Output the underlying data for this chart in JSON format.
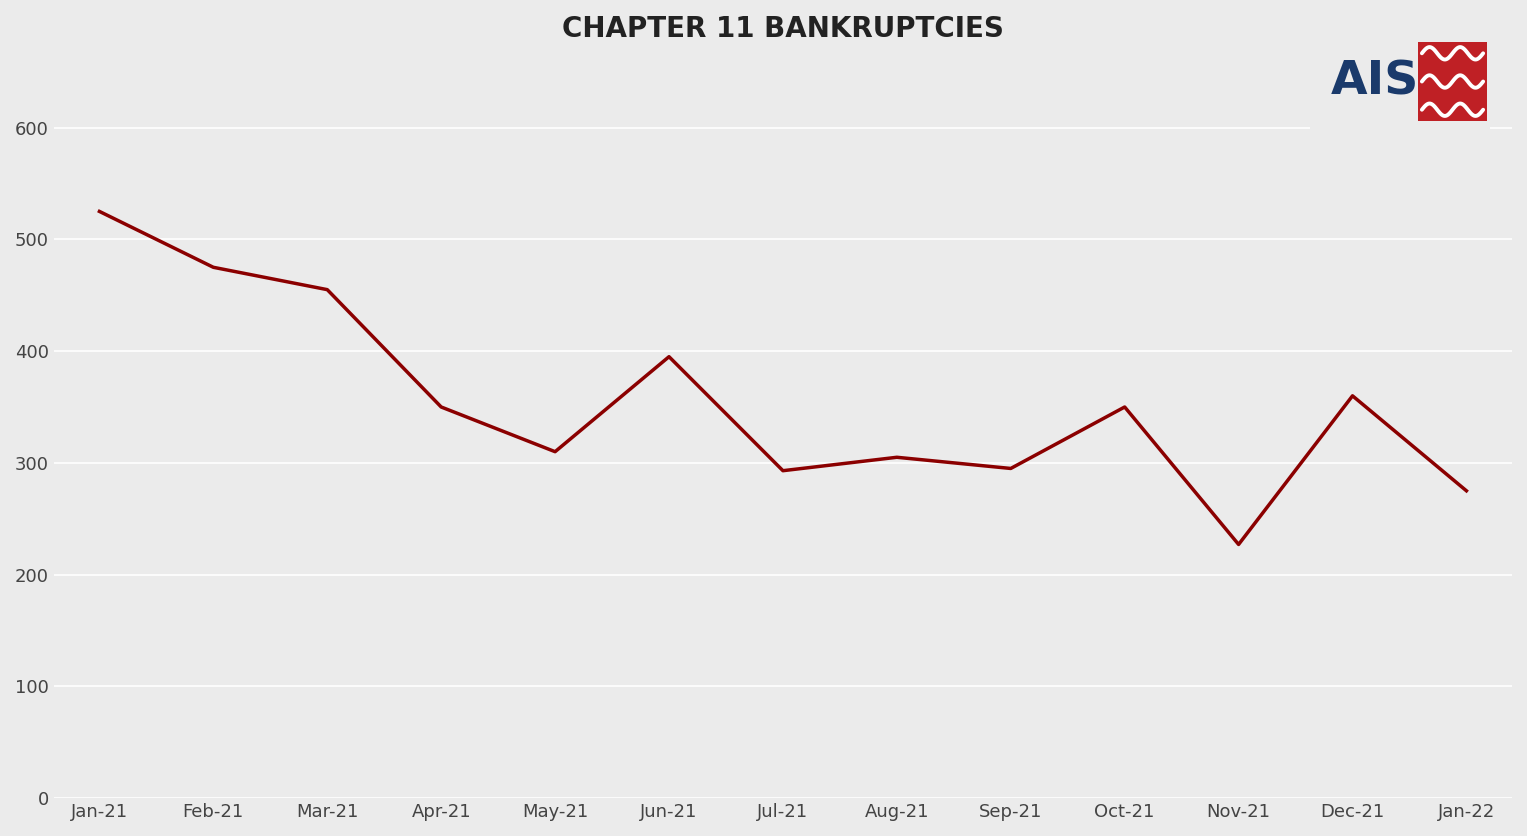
{
  "title": "CHAPTER 11 BANKRUPTCIES",
  "categories": [
    "Jan-21",
    "Feb-21",
    "Mar-21",
    "Apr-21",
    "May-21",
    "Jun-21",
    "Jul-21",
    "Aug-21",
    "Sep-21",
    "Oct-21",
    "Nov-21",
    "Dec-21",
    "Jan-22"
  ],
  "values": [
    525,
    475,
    455,
    350,
    310,
    395,
    293,
    305,
    295,
    350,
    227,
    360,
    275
  ],
  "line_color": "#8B0000",
  "line_width": 2.5,
  "background_color": "#EBEBEB",
  "plot_bg_color": "#EBEBEB",
  "title_fontsize": 20,
  "title_fontweight": "bold",
  "tick_fontsize": 13,
  "ylim": [
    0,
    650
  ],
  "yticks": [
    0,
    100,
    200,
    300,
    400,
    500,
    600
  ],
  "grid_color": "#FFFFFF",
  "grid_linewidth": 1.2,
  "ais_blue": "#1A3A6B",
  "ais_red": "#BF2025"
}
